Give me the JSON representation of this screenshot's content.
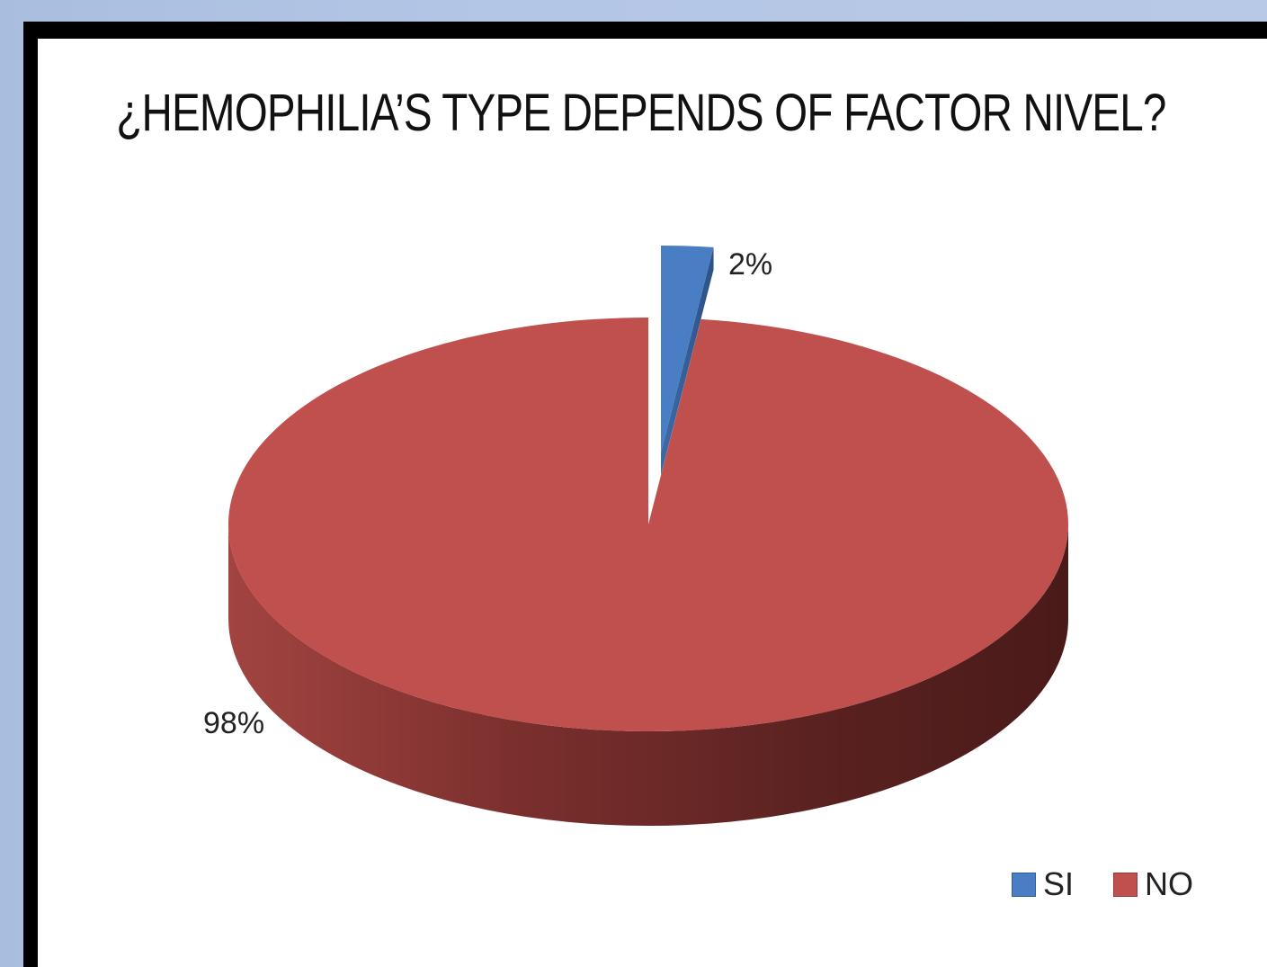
{
  "chart_data": {
    "type": "pie",
    "title": "¿HEMOPHILIA’S TYPE DEPENDS OF FACTOR NIVEL?",
    "categories": [
      "SI",
      "NO"
    ],
    "values": [
      2,
      98
    ],
    "value_labels": [
      "2%",
      "98%"
    ],
    "colors": [
      "#4a7ec4",
      "#c0504d"
    ],
    "style": "3d-exploded",
    "legend_position": "bottom-right"
  }
}
